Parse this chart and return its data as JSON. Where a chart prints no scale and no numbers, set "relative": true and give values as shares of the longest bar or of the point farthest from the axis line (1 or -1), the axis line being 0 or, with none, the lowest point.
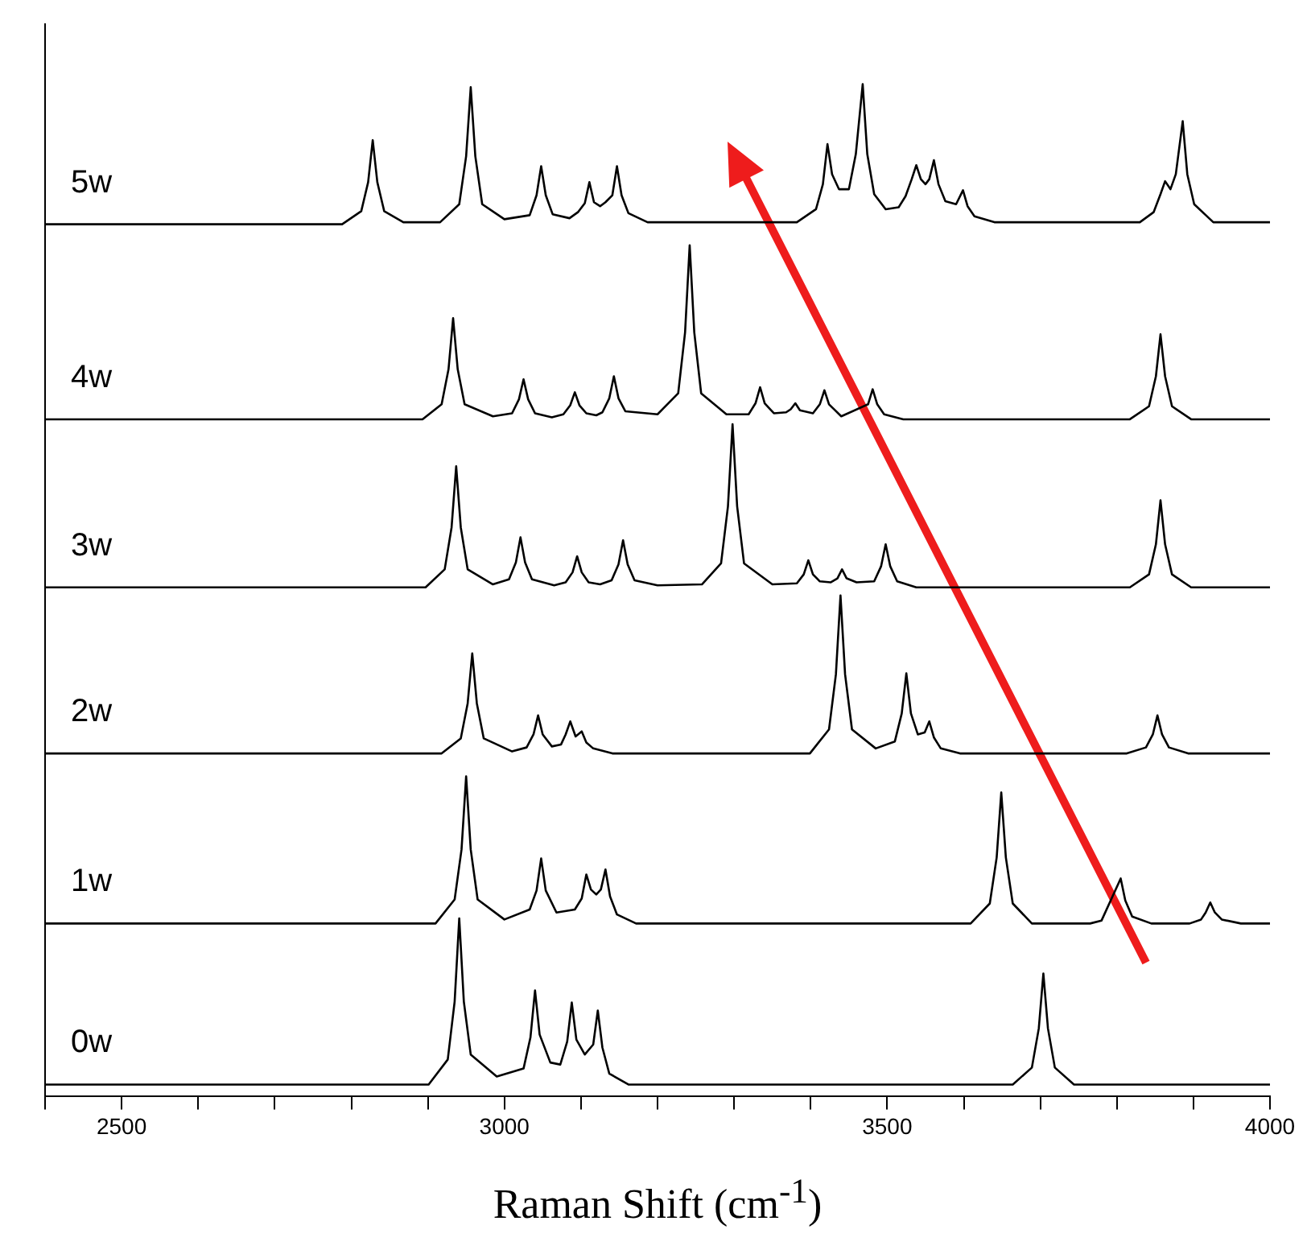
{
  "chart_data": {
    "type": "line",
    "xlabel": "Raman Shift (cm$^{-1}$)",
    "relative": true,
    "legend": false,
    "marker": "none",
    "tick_labels": "x",
    "xlim": [
      2400,
      4000
    ],
    "xticks": [
      {
        "value": 2400,
        "label": null
      },
      2500,
      {
        "value": 2600,
        "label": null
      },
      {
        "value": 2700,
        "label": null
      },
      {
        "value": 2800,
        "label": null
      },
      {
        "value": 2900,
        "label": null
      },
      3000,
      {
        "value": 3100,
        "label": null
      },
      {
        "value": 3200,
        "label": null
      },
      {
        "value": 3300,
        "label": null
      },
      {
        "value": 3400,
        "label": null
      },
      3500,
      {
        "value": 3600,
        "label": null
      },
      {
        "value": 3700,
        "label": null
      },
      {
        "value": 3800,
        "label": null
      },
      {
        "value": 3900,
        "label": null
      },
      4000
    ],
    "series": [
      {
        "name": "0w",
        "color": "#000000",
        "x": [
          2400,
          2901,
          2926,
          2935,
          2941,
          2947,
          2956,
          2990,
          3025,
          3034,
          3040,
          3046,
          3060,
          3073,
          3082,
          3088,
          3094,
          3105,
          3116,
          3122,
          3128,
          3137,
          3162,
          3664,
          3689,
          3698,
          3704,
          3710,
          3719,
          3744,
          4000
        ],
        "values": [
          0,
          0,
          0.025,
          0.083,
          0.166,
          0.083,
          0.03,
          0.008,
          0.016,
          0.047,
          0.094,
          0.05,
          0.022,
          0.02,
          0.043,
          0.082,
          0.045,
          0.03,
          0.04,
          0.074,
          0.037,
          0.011,
          0,
          0,
          0.017,
          0.056,
          0.111,
          0.056,
          0.017,
          0,
          0
        ]
      },
      {
        "name": "1w",
        "color": "#000000",
        "x": [
          2400,
          2910,
          2935,
          2944,
          2950,
          2956,
          2965,
          3000,
          3033,
          3042,
          3048,
          3054,
          3068,
          3092,
          3101,
          3107,
          3113,
          3120,
          3126,
          3132,
          3138,
          3147,
          3172,
          3609,
          3634,
          3643,
          3649,
          3655,
          3664,
          3689,
          3765,
          3780,
          3805,
          3811,
          3820,
          3845,
          3895,
          3910,
          3916,
          3922,
          3928,
          3937,
          3962,
          4000
        ],
        "values": [
          0.161,
          0.161,
          0.185,
          0.235,
          0.308,
          0.235,
          0.185,
          0.165,
          0.175,
          0.194,
          0.226,
          0.194,
          0.172,
          0.175,
          0.186,
          0.21,
          0.195,
          0.19,
          0.195,
          0.215,
          0.188,
          0.17,
          0.161,
          0.161,
          0.181,
          0.227,
          0.292,
          0.227,
          0.181,
          0.161,
          0.161,
          0.164,
          0.206,
          0.184,
          0.168,
          0.161,
          0.161,
          0.165,
          0.172,
          0.182,
          0.172,
          0.165,
          0.161,
          0.161
        ]
      },
      {
        "name": "2w",
        "color": "#000000",
        "x": [
          2400,
          2918,
          2943,
          2952,
          2958,
          2964,
          2973,
          3010,
          3029,
          3038,
          3044,
          3050,
          3062,
          3074,
          3080,
          3086,
          3093,
          3101,
          3107,
          3116,
          3141,
          3399,
          3424,
          3433,
          3439,
          3445,
          3454,
          3485,
          3510,
          3519,
          3525,
          3531,
          3540,
          3549,
          3555,
          3561,
          3570,
          3595,
          3813,
          3838,
          3847,
          3853,
          3859,
          3868,
          3893,
          4000
        ],
        "values": [
          0.331,
          0.331,
          0.346,
          0.381,
          0.431,
          0.381,
          0.346,
          0.333,
          0.337,
          0.35,
          0.369,
          0.35,
          0.338,
          0.34,
          0.35,
          0.363,
          0.348,
          0.353,
          0.342,
          0.336,
          0.331,
          0.331,
          0.355,
          0.41,
          0.489,
          0.41,
          0.355,
          0.336,
          0.343,
          0.371,
          0.411,
          0.371,
          0.35,
          0.352,
          0.363,
          0.347,
          0.336,
          0.331,
          0.331,
          0.337,
          0.35,
          0.369,
          0.35,
          0.337,
          0.331,
          0.331
        ]
      },
      {
        "name": "3w",
        "color": "#000000",
        "x": [
          2400,
          2897,
          2922,
          2931,
          2937,
          2943,
          2952,
          2985,
          3006,
          3015,
          3021,
          3027,
          3036,
          3065,
          3080,
          3089,
          3095,
          3101,
          3110,
          3125,
          3140,
          3149,
          3155,
          3161,
          3170,
          3200,
          3258,
          3283,
          3292,
          3298,
          3304,
          3313,
          3350,
          3382,
          3391,
          3397,
          3403,
          3412,
          3426,
          3435,
          3441,
          3447,
          3460,
          3483,
          3492,
          3498,
          3504,
          3513,
          3538,
          3817,
          3842,
          3851,
          3857,
          3863,
          3872,
          3897,
          4000
        ],
        "values": [
          0.497,
          0.497,
          0.515,
          0.557,
          0.618,
          0.557,
          0.515,
          0.5,
          0.505,
          0.522,
          0.547,
          0.522,
          0.505,
          0.499,
          0.502,
          0.512,
          0.528,
          0.512,
          0.502,
          0.5,
          0.504,
          0.52,
          0.544,
          0.52,
          0.504,
          0.499,
          0.5,
          0.521,
          0.578,
          0.66,
          0.578,
          0.521,
          0.5,
          0.501,
          0.51,
          0.524,
          0.51,
          0.503,
          0.502,
          0.506,
          0.515,
          0.506,
          0.502,
          0.503,
          0.518,
          0.54,
          0.518,
          0.503,
          0.497,
          0.497,
          0.51,
          0.54,
          0.584,
          0.54,
          0.51,
          0.497,
          0.497
        ]
      },
      {
        "name": "4w",
        "color": "#000000",
        "x": [
          2400,
          2893,
          2918,
          2927,
          2933,
          2939,
          2948,
          2985,
          3010,
          3019,
          3025,
          3031,
          3040,
          3062,
          3077,
          3086,
          3092,
          3098,
          3107,
          3120,
          3128,
          3137,
          3143,
          3149,
          3158,
          3200,
          3227,
          3236,
          3242,
          3248,
          3257,
          3290,
          3319,
          3328,
          3334,
          3340,
          3352,
          3368,
          3374,
          3380,
          3386,
          3403,
          3412,
          3418,
          3424,
          3440,
          3475,
          3481,
          3487,
          3496,
          3521,
          3817,
          3842,
          3851,
          3857,
          3863,
          3872,
          3897,
          4000
        ],
        "values": [
          0.665,
          0.665,
          0.68,
          0.715,
          0.766,
          0.715,
          0.68,
          0.668,
          0.671,
          0.685,
          0.705,
          0.685,
          0.671,
          0.667,
          0.67,
          0.679,
          0.692,
          0.679,
          0.671,
          0.669,
          0.672,
          0.686,
          0.708,
          0.686,
          0.673,
          0.67,
          0.691,
          0.752,
          0.839,
          0.752,
          0.691,
          0.67,
          0.67,
          0.681,
          0.697,
          0.681,
          0.671,
          0.672,
          0.675,
          0.681,
          0.674,
          0.671,
          0.68,
          0.694,
          0.68,
          0.668,
          0.68,
          0.695,
          0.68,
          0.67,
          0.665,
          0.665,
          0.678,
          0.708,
          0.75,
          0.708,
          0.678,
          0.665,
          0.665
        ]
      },
      {
        "name": "5w",
        "color": "#000000",
        "x": [
          2400,
          2788,
          2813,
          2822,
          2828,
          2834,
          2843,
          2868,
          2916,
          2941,
          2950,
          2956,
          2962,
          2971,
          3000,
          3033,
          3042,
          3048,
          3054,
          3063,
          3085,
          3096,
          3105,
          3111,
          3117,
          3125,
          3132,
          3141,
          3147,
          3153,
          3162,
          3187,
          3382,
          3407,
          3416,
          3422,
          3428,
          3437,
          3450,
          3459,
          3468,
          3474,
          3483,
          3498,
          3515,
          3524,
          3532,
          3538,
          3544,
          3550,
          3555,
          3561,
          3567,
          3576,
          3590,
          3599,
          3605,
          3614,
          3640,
          3830,
          3848,
          3857,
          3863,
          3870,
          3877,
          3886,
          3892,
          3901,
          3926,
          4000
        ],
        "values": [
          0.86,
          0.86,
          0.873,
          0.902,
          0.944,
          0.902,
          0.873,
          0.862,
          0.862,
          0.88,
          0.928,
          0.997,
          0.928,
          0.88,
          0.865,
          0.869,
          0.889,
          0.918,
          0.889,
          0.87,
          0.866,
          0.872,
          0.881,
          0.902,
          0.882,
          0.878,
          0.882,
          0.889,
          0.918,
          0.889,
          0.871,
          0.862,
          0.862,
          0.875,
          0.9,
          0.94,
          0.91,
          0.895,
          0.895,
          0.93,
          1.0,
          0.93,
          0.89,
          0.875,
          0.877,
          0.888,
          0.905,
          0.919,
          0.905,
          0.9,
          0.905,
          0.924,
          0.9,
          0.883,
          0.88,
          0.894,
          0.878,
          0.868,
          0.862,
          0.862,
          0.872,
          0.89,
          0.903,
          0.895,
          0.91,
          0.963,
          0.91,
          0.88,
          0.862,
          0.862
        ]
      }
    ]
  }
}
